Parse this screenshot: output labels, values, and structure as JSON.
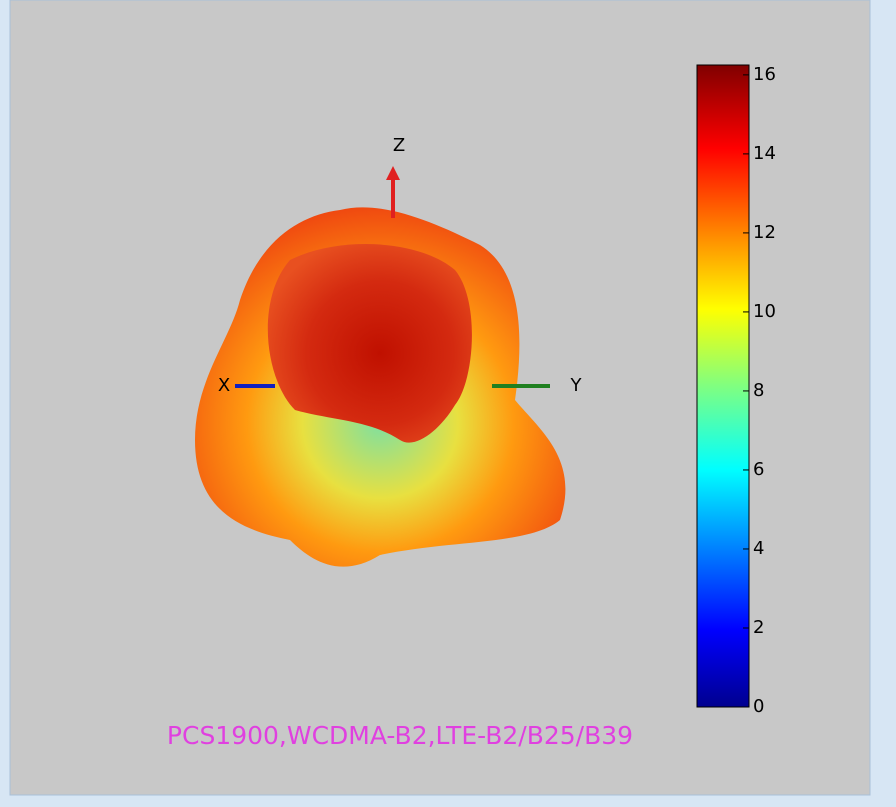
{
  "axes": {
    "z_label": "Z",
    "x_label": "X",
    "y_label": "Y"
  },
  "colorbar": {
    "lim": [
      0,
      16.25
    ],
    "ticks": [
      0,
      2,
      4,
      6,
      8,
      10,
      12,
      14,
      16
    ]
  },
  "caption": "PCS1900,WCDMA-B2,LTE-B2/B25/B39"
}
